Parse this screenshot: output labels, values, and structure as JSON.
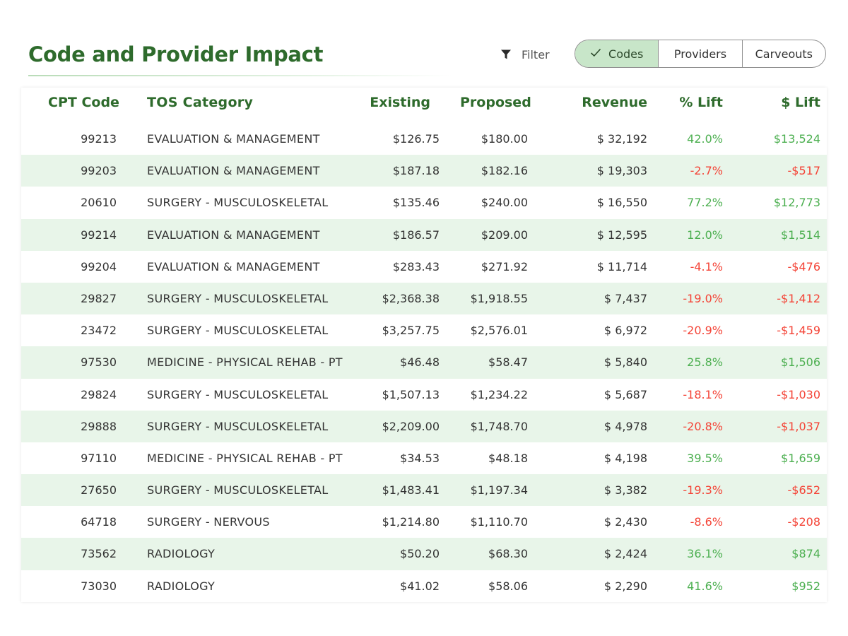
{
  "title": "Code and Provider Impact",
  "filter": {
    "icon": "funnel-icon",
    "label": "Filter"
  },
  "tabs": [
    {
      "label": "Codes",
      "active": true
    },
    {
      "label": "Providers",
      "active": false
    },
    {
      "label": "Carveouts",
      "active": false
    }
  ],
  "colors": {
    "accent": "#2e6b2c",
    "positive": "#4caf50",
    "negative": "#f44336",
    "stripe": "#e8f5e9",
    "active_tab": "#c8e6c9"
  },
  "columns": [
    "CPT Code",
    "TOS Category",
    "Existing",
    "Proposed",
    "Revenue",
    "% Lift",
    "$ Lift"
  ],
  "rows": [
    {
      "code": "99213",
      "tos": "EVALUATION & MANAGEMENT",
      "existing": "$126.75",
      "proposed": "$180.00",
      "revenue": "$ 32,192",
      "pct_lift": "42.0%",
      "dollar_lift": "$13,524"
    },
    {
      "code": "99203",
      "tos": "EVALUATION & MANAGEMENT",
      "existing": "$187.18",
      "proposed": "$182.16",
      "revenue": "$ 19,303",
      "pct_lift": "-2.7%",
      "dollar_lift": "-$517"
    },
    {
      "code": "20610",
      "tos": "SURGERY - MUSCULOSKELETAL",
      "existing": "$135.46",
      "proposed": "$240.00",
      "revenue": "$ 16,550",
      "pct_lift": "77.2%",
      "dollar_lift": "$12,773"
    },
    {
      "code": "99214",
      "tos": "EVALUATION & MANAGEMENT",
      "existing": "$186.57",
      "proposed": "$209.00",
      "revenue": "$ 12,595",
      "pct_lift": "12.0%",
      "dollar_lift": "$1,514"
    },
    {
      "code": "99204",
      "tos": "EVALUATION & MANAGEMENT",
      "existing": "$283.43",
      "proposed": "$271.92",
      "revenue": "$ 11,714",
      "pct_lift": "-4.1%",
      "dollar_lift": "-$476"
    },
    {
      "code": "29827",
      "tos": "SURGERY - MUSCULOSKELETAL",
      "existing": "$2,368.38",
      "proposed": "$1,918.55",
      "revenue": "$ 7,437",
      "pct_lift": "-19.0%",
      "dollar_lift": "-$1,412"
    },
    {
      "code": "23472",
      "tos": "SURGERY - MUSCULOSKELETAL",
      "existing": "$3,257.75",
      "proposed": "$2,576.01",
      "revenue": "$ 6,972",
      "pct_lift": "-20.9%",
      "dollar_lift": "-$1,459"
    },
    {
      "code": "97530",
      "tos": "MEDICINE - PHYSICAL REHAB - PT",
      "existing": "$46.48",
      "proposed": "$58.47",
      "revenue": "$ 5,840",
      "pct_lift": "25.8%",
      "dollar_lift": "$1,506"
    },
    {
      "code": "29824",
      "tos": "SURGERY - MUSCULOSKELETAL",
      "existing": "$1,507.13",
      "proposed": "$1,234.22",
      "revenue": "$ 5,687",
      "pct_lift": "-18.1%",
      "dollar_lift": "-$1,030"
    },
    {
      "code": "29888",
      "tos": "SURGERY - MUSCULOSKELETAL",
      "existing": "$2,209.00",
      "proposed": "$1,748.70",
      "revenue": "$ 4,978",
      "pct_lift": "-20.8%",
      "dollar_lift": "-$1,037"
    },
    {
      "code": "97110",
      "tos": "MEDICINE - PHYSICAL REHAB - PT",
      "existing": "$34.53",
      "proposed": "$48.18",
      "revenue": "$ 4,198",
      "pct_lift": "39.5%",
      "dollar_lift": "$1,659"
    },
    {
      "code": "27650",
      "tos": "SURGERY - MUSCULOSKELETAL",
      "existing": "$1,483.41",
      "proposed": "$1,197.34",
      "revenue": "$ 3,382",
      "pct_lift": "-19.3%",
      "dollar_lift": "-$652"
    },
    {
      "code": "64718",
      "tos": "SURGERY - NERVOUS",
      "existing": "$1,214.80",
      "proposed": "$1,110.70",
      "revenue": "$ 2,430",
      "pct_lift": "-8.6%",
      "dollar_lift": "-$208"
    },
    {
      "code": "73562",
      "tos": "RADIOLOGY",
      "existing": "$50.20",
      "proposed": "$68.30",
      "revenue": "$ 2,424",
      "pct_lift": "36.1%",
      "dollar_lift": "$874"
    },
    {
      "code": "73030",
      "tos": "RADIOLOGY",
      "existing": "$41.02",
      "proposed": "$58.06",
      "revenue": "$ 2,290",
      "pct_lift": "41.6%",
      "dollar_lift": "$952"
    }
  ]
}
